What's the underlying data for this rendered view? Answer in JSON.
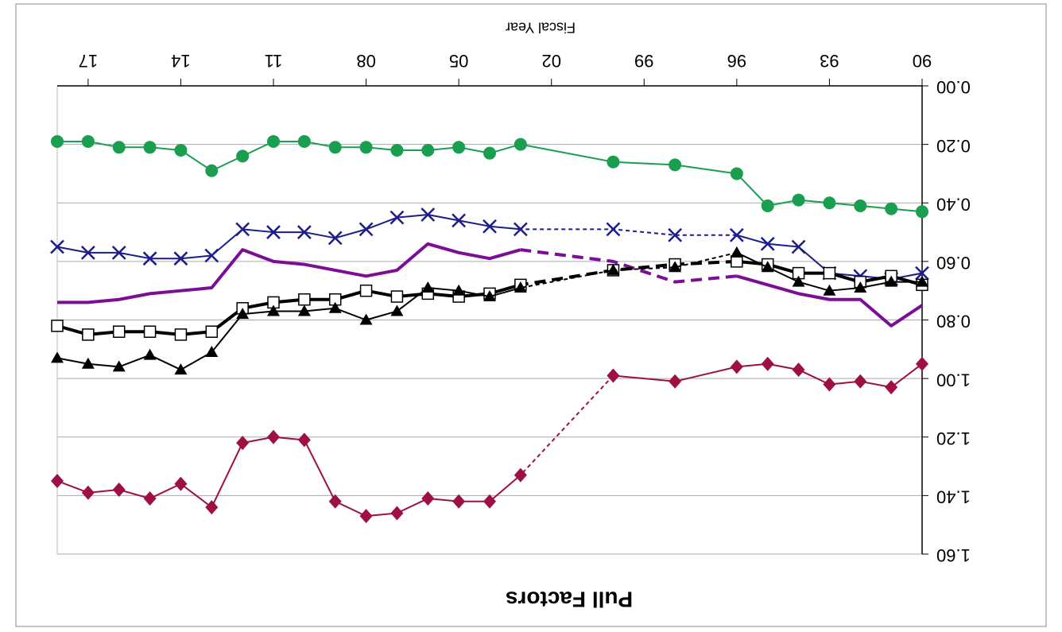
{
  "chart_data": {
    "type": "line",
    "title": "Pull Factors",
    "x_label": "Fiscal Year",
    "rotation": 180,
    "x": [
      1990,
      1991,
      1992,
      1993,
      1994,
      1995,
      1996,
      1998,
      2000,
      2003,
      2004,
      2005,
      2006,
      2007,
      2008,
      2009,
      2010,
      2011,
      2012,
      2013,
      2014,
      2015,
      2016,
      2017,
      2018
    ],
    "xlim": [
      1990,
      2018
    ],
    "xticks": [
      {
        "value": 1990,
        "label": "90"
      },
      {
        "value": 1993,
        "label": "93"
      },
      {
        "value": 1996,
        "label": "96"
      },
      {
        "value": 1999,
        "label": "99"
      },
      {
        "value": 2002,
        "label": "02"
      },
      {
        "value": 2005,
        "label": "05"
      },
      {
        "value": 2008,
        "label": "08"
      },
      {
        "value": 2011,
        "label": "11"
      },
      {
        "value": 2014,
        "label": "14"
      },
      {
        "value": 2017,
        "label": "17"
      }
    ],
    "ylim": [
      0,
      1.6
    ],
    "yticks": [
      {
        "value": 0,
        "label": "0.00"
      },
      {
        "value": 0.2,
        "label": "0.20"
      },
      {
        "value": 0.4,
        "label": "0.40"
      },
      {
        "value": 0.6,
        "label": "0.60"
      },
      {
        "value": 0.8,
        "label": "0.80"
      },
      {
        "value": 1,
        "label": "1.00"
      },
      {
        "value": 1.2,
        "label": "1.20"
      },
      {
        "value": 1.4,
        "label": "1.40"
      },
      {
        "value": 1.6,
        "label": "1.60"
      }
    ],
    "grid": true,
    "series": [
      {
        "color": "#1a9e50",
        "marker": "circle",
        "line_width": 2,
        "dashed": null,
        "values": [
          0.43,
          0.42,
          0.41,
          0.4,
          0.39,
          0.41,
          0.3,
          0.27,
          0.26,
          0.2,
          0.23,
          0.21,
          0.22,
          0.22,
          0.21,
          0.21,
          0.19,
          0.19,
          0.24,
          0.29,
          0.22,
          0.21,
          0.21,
          0.19,
          0.19
        ]
      },
      {
        "color": "#1c1c8c",
        "marker": "cross",
        "line_width": 2,
        "dashed": [
          1996,
          2003
        ],
        "values": [
          0.64,
          0.66,
          0.65,
          0.64,
          0.55,
          0.54,
          0.51,
          0.51,
          0.49,
          0.49,
          0.48,
          0.46,
          0.44,
          0.45,
          0.49,
          0.52,
          0.5,
          0.5,
          0.49,
          0.58,
          0.59,
          0.59,
          0.57,
          0.57,
          0.55
        ]
      },
      {
        "color": "#7b0d96",
        "marker": "none",
        "line_width": 4,
        "dashed": [
          1996,
          2003
        ],
        "values": [
          0.75,
          0.82,
          0.73,
          0.73,
          0.71,
          0.68,
          0.65,
          0.67,
          0.6,
          0.56,
          0.59,
          0.57,
          0.54,
          0.63,
          0.65,
          0.63,
          0.61,
          0.6,
          0.56,
          0.69,
          0.7,
          0.71,
          0.73,
          0.74,
          0.74
        ]
      },
      {
        "color": "#000000",
        "marker": "square",
        "line_width": 4,
        "dashed": [
          1996,
          2003
        ],
        "values": [
          0.68,
          0.65,
          0.67,
          0.64,
          0.64,
          0.61,
          0.6,
          0.61,
          0.63,
          0.68,
          0.71,
          0.72,
          0.71,
          0.72,
          0.7,
          0.73,
          0.73,
          0.74,
          0.76,
          0.84,
          0.85,
          0.84,
          0.84,
          0.85,
          0.82
        ]
      },
      {
        "color": "#000000",
        "marker": "triangle-down",
        "line_width": 2,
        "dashed": [
          1996,
          2003
        ],
        "values": [
          0.67,
          0.67,
          0.69,
          0.7,
          0.67,
          0.62,
          0.57,
          0.62,
          0.63,
          0.69,
          0.72,
          0.7,
          0.69,
          0.77,
          0.8,
          0.76,
          0.77,
          0.77,
          0.78,
          0.91,
          0.97,
          0.92,
          0.96,
          0.95,
          0.93
        ]
      },
      {
        "color": "#9e0f45",
        "marker": "diamond",
        "line_width": 2,
        "dashed": [
          2000,
          2003
        ],
        "values": [
          0.95,
          1.03,
          1.01,
          1.02,
          0.97,
          0.95,
          0.96,
          1.01,
          0.99,
          1.33,
          1.42,
          1.42,
          1.41,
          1.46,
          1.47,
          1.42,
          1.21,
          1.2,
          1.22,
          1.44,
          1.36,
          1.41,
          1.38,
          1.39,
          1.35
        ]
      }
    ]
  }
}
